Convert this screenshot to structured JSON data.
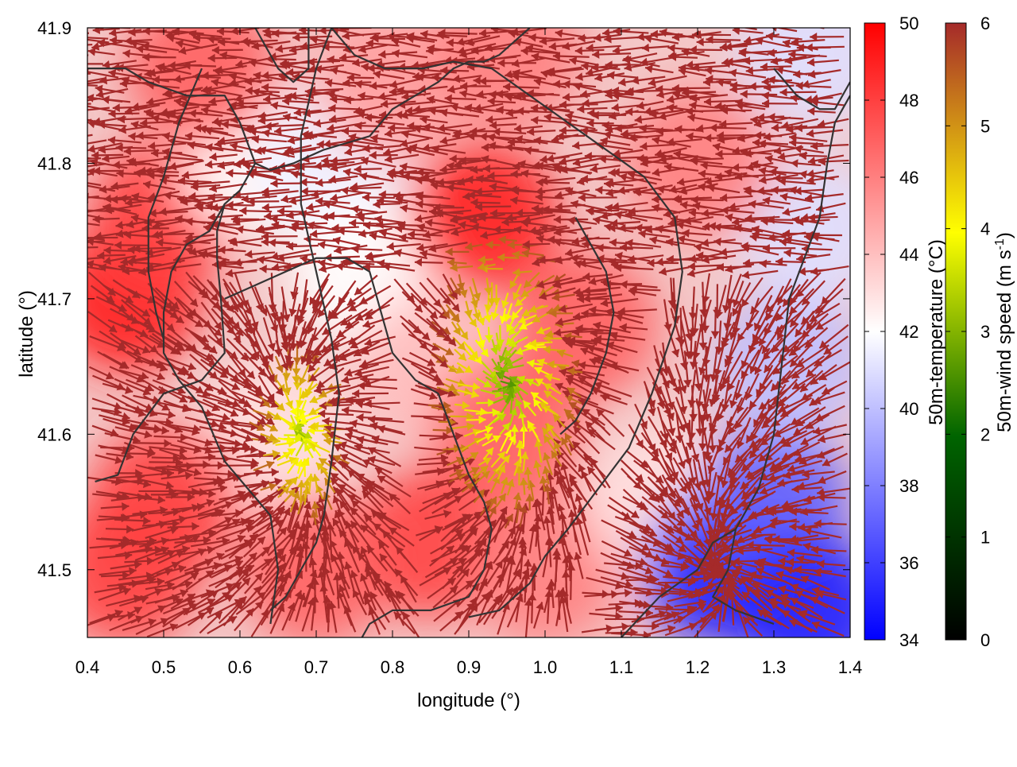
{
  "chart_data": {
    "type": "heatmap",
    "title": "",
    "xlabel": "longitude (°)",
    "ylabel": "latitude (°)",
    "xlim": [
      0.4,
      1.4
    ],
    "ylim": [
      41.45,
      41.9
    ],
    "xticks": [
      "0.4",
      "0.5",
      "0.6",
      "0.7",
      "0.8",
      "0.9",
      "1.0",
      "1.1",
      "1.2",
      "1.3",
      "1.4"
    ],
    "xtick_values": [
      0.4,
      0.5,
      0.6,
      0.7,
      0.8,
      0.9,
      1.0,
      1.1,
      1.2,
      1.3,
      1.4
    ],
    "yticks": [
      "41.5",
      "41.6",
      "41.7",
      "41.8",
      "41.9"
    ],
    "ytick_values": [
      41.5,
      41.6,
      41.7,
      41.8,
      41.9
    ],
    "temperature_colorbar": {
      "label": "50m-temperature (°C)",
      "range": [
        34,
        50
      ],
      "ticks": [
        "34",
        "36",
        "38",
        "40",
        "42",
        "44",
        "46",
        "48",
        "50"
      ],
      "colors": [
        "#0000ff",
        "#ffffff",
        "#ff0000"
      ]
    },
    "windspeed_colorbar": {
      "label": "50m-wind speed (m s",
      "label_sup": "-1",
      "label_close": ")",
      "range": [
        0,
        6
      ],
      "ticks": [
        "0",
        "1",
        "2",
        "3",
        "4",
        "5",
        "6"
      ],
      "colors": [
        "#000000",
        "#006400",
        "#ffff00",
        "#a52a2a"
      ]
    },
    "temperature_field": [
      {
        "lon": 0.45,
        "lat": 41.7,
        "t": 49
      },
      {
        "lon": 0.5,
        "lat": 41.76,
        "t": 48
      },
      {
        "lon": 0.62,
        "lat": 41.8,
        "t": 42
      },
      {
        "lon": 0.72,
        "lat": 41.8,
        "t": 41.5
      },
      {
        "lon": 0.76,
        "lat": 41.72,
        "t": 42
      },
      {
        "lon": 0.92,
        "lat": 41.76,
        "t": 49
      },
      {
        "lon": 0.8,
        "lat": 41.86,
        "t": 45
      },
      {
        "lon": 0.95,
        "lat": 41.88,
        "t": 46
      },
      {
        "lon": 0.55,
        "lat": 41.87,
        "t": 47
      },
      {
        "lon": 0.85,
        "lat": 41.65,
        "t": 44
      },
      {
        "lon": 0.65,
        "lat": 41.6,
        "t": 43
      },
      {
        "lon": 0.85,
        "lat": 41.52,
        "t": 48
      },
      {
        "lon": 0.95,
        "lat": 41.6,
        "t": 47
      },
      {
        "lon": 1.05,
        "lat": 41.68,
        "t": 47
      },
      {
        "lon": 1.0,
        "lat": 41.5,
        "t": 46
      },
      {
        "lon": 1.15,
        "lat": 41.55,
        "t": 43
      },
      {
        "lon": 1.23,
        "lat": 41.5,
        "t": 35
      },
      {
        "lon": 1.3,
        "lat": 41.55,
        "t": 37
      },
      {
        "lon": 1.35,
        "lat": 41.47,
        "t": 35
      },
      {
        "lon": 1.32,
        "lat": 41.65,
        "t": 40
      },
      {
        "lon": 1.35,
        "lat": 41.75,
        "t": 41
      },
      {
        "lon": 1.2,
        "lat": 41.8,
        "t": 46
      },
      {
        "lon": 1.35,
        "lat": 41.88,
        "t": 41
      },
      {
        "lon": 0.5,
        "lat": 41.55,
        "t": 48
      },
      {
        "lon": 0.45,
        "lat": 41.5,
        "t": 48
      },
      {
        "lon": 0.7,
        "lat": 41.5,
        "t": 47
      }
    ],
    "contour_lines": [
      [
        [
          0.62,
          41.9
        ],
        [
          0.65,
          41.87
        ],
        [
          0.67,
          41.86
        ],
        [
          0.69,
          41.87
        ],
        [
          0.69,
          41.9
        ]
      ],
      [
        [
          0.4,
          41.87
        ],
        [
          0.45,
          41.87
        ],
        [
          0.48,
          41.86
        ],
        [
          0.53,
          41.85
        ],
        [
          0.58,
          41.85
        ],
        [
          0.6,
          41.83
        ],
        [
          0.62,
          41.8
        ],
        [
          0.64,
          41.795
        ],
        [
          0.67,
          41.8
        ],
        [
          0.71,
          41.81
        ],
        [
          0.74,
          41.815
        ],
        [
          0.77,
          41.82
        ],
        [
          0.8,
          41.84
        ],
        [
          0.83,
          41.85
        ],
        [
          0.86,
          41.86
        ],
        [
          0.88,
          41.87
        ],
        [
          0.9,
          41.875
        ],
        [
          0.92,
          41.875
        ],
        [
          0.94,
          41.88
        ],
        [
          0.98,
          41.9
        ]
      ],
      [
        [
          0.62,
          41.8
        ],
        [
          0.6,
          41.78
        ],
        [
          0.58,
          41.77
        ],
        [
          0.56,
          41.75
        ],
        [
          0.53,
          41.74
        ],
        [
          0.52,
          41.73
        ],
        [
          0.51,
          41.72
        ],
        [
          0.5,
          41.69
        ],
        [
          0.5,
          41.66
        ],
        [
          0.52,
          41.64
        ],
        [
          0.55,
          41.62
        ],
        [
          0.58,
          41.58
        ],
        [
          0.61,
          41.56
        ],
        [
          0.64,
          41.54
        ],
        [
          0.65,
          41.5
        ],
        [
          0.64,
          41.46
        ]
      ],
      [
        [
          0.58,
          41.77
        ],
        [
          0.57,
          41.75
        ],
        [
          0.57,
          41.73
        ],
        [
          0.575,
          41.7
        ],
        [
          0.58,
          41.66
        ],
        [
          0.55,
          41.64
        ],
        [
          0.5,
          41.63
        ],
        [
          0.46,
          41.6
        ],
        [
          0.44,
          41.57
        ],
        [
          0.41,
          41.565
        ]
      ],
      [
        [
          0.55,
          41.87
        ],
        [
          0.52,
          41.83
        ],
        [
          0.5,
          41.79
        ],
        [
          0.48,
          41.76
        ],
        [
          0.48,
          41.72
        ],
        [
          0.49,
          41.69
        ],
        [
          0.5,
          41.67
        ]
      ],
      [
        [
          0.58,
          41.7
        ],
        [
          0.62,
          41.71
        ],
        [
          0.66,
          41.72
        ],
        [
          0.7,
          41.73
        ],
        [
          0.74,
          41.73
        ],
        [
          0.77,
          41.72
        ],
        [
          0.78,
          41.7
        ],
        [
          0.79,
          41.68
        ],
        [
          0.8,
          41.66
        ],
        [
          0.83,
          41.64
        ],
        [
          0.86,
          41.63
        ],
        [
          0.88,
          41.6
        ],
        [
          0.9,
          41.57
        ],
        [
          0.92,
          41.55
        ],
        [
          0.93,
          41.53
        ],
        [
          0.92,
          41.5
        ],
        [
          0.9,
          41.48
        ],
        [
          0.85,
          41.47
        ],
        [
          0.8,
          41.47
        ],
        [
          0.77,
          41.46
        ],
        [
          0.76,
          41.45
        ]
      ],
      [
        [
          0.72,
          41.9
        ],
        [
          0.75,
          41.88
        ],
        [
          0.79,
          41.87
        ],
        [
          0.84,
          41.87
        ],
        [
          0.88,
          41.875
        ],
        [
          0.93,
          41.87
        ],
        [
          0.98,
          41.85
        ],
        [
          1.03,
          41.83
        ],
        [
          1.08,
          41.81
        ],
        [
          1.13,
          41.79
        ],
        [
          1.17,
          41.76
        ],
        [
          1.18,
          41.72
        ],
        [
          1.17,
          41.68
        ],
        [
          1.14,
          41.63
        ],
        [
          1.11,
          41.59
        ],
        [
          1.07,
          41.56
        ],
        [
          1.03,
          41.53
        ],
        [
          1.0,
          41.51
        ],
        [
          0.98,
          41.49
        ],
        [
          0.94,
          41.47
        ],
        [
          0.9,
          41.465
        ]
      ],
      [
        [
          0.72,
          41.9
        ],
        [
          0.7,
          41.87
        ],
        [
          0.68,
          41.82
        ],
        [
          0.68,
          41.77
        ],
        [
          0.7,
          41.72
        ],
        [
          0.72,
          41.67
        ],
        [
          0.73,
          41.63
        ],
        [
          0.72,
          41.58
        ],
        [
          0.71,
          41.54
        ],
        [
          0.7,
          41.52
        ],
        [
          0.68,
          41.5
        ],
        [
          0.66,
          41.48
        ],
        [
          0.64,
          41.47
        ]
      ],
      [
        [
          1.1,
          41.45
        ],
        [
          1.15,
          41.48
        ],
        [
          1.2,
          41.5
        ],
        [
          1.22,
          41.52
        ],
        [
          1.25,
          41.53
        ],
        [
          1.24,
          41.5
        ],
        [
          1.22,
          41.48
        ],
        [
          1.25,
          41.47
        ],
        [
          1.3,
          41.46
        ]
      ],
      [
        [
          1.25,
          41.53
        ],
        [
          1.28,
          41.56
        ],
        [
          1.3,
          41.6
        ],
        [
          1.31,
          41.65
        ],
        [
          1.32,
          41.7
        ],
        [
          1.34,
          41.73
        ],
        [
          1.36,
          41.76
        ],
        [
          1.37,
          41.8
        ],
        [
          1.38,
          41.83
        ],
        [
          1.4,
          41.85
        ]
      ],
      [
        [
          1.3,
          41.87
        ],
        [
          1.33,
          41.85
        ],
        [
          1.36,
          41.84
        ],
        [
          1.38,
          41.84
        ],
        [
          1.4,
          41.86
        ]
      ],
      [
        [
          1.04,
          41.76
        ],
        [
          1.06,
          41.74
        ],
        [
          1.08,
          41.72
        ],
        [
          1.09,
          41.69
        ],
        [
          1.08,
          41.66
        ],
        [
          1.06,
          41.63
        ],
        [
          1.04,
          41.61
        ],
        [
          1.02,
          41.6
        ]
      ]
    ],
    "wind_flow_centers": [
      {
        "lon": 0.95,
        "lat": 41.64
      },
      {
        "lon": 0.68,
        "lat": 41.6
      },
      {
        "lon": 1.23,
        "lat": 41.5
      }
    ],
    "grid": false,
    "legend": "colorbars-right"
  }
}
